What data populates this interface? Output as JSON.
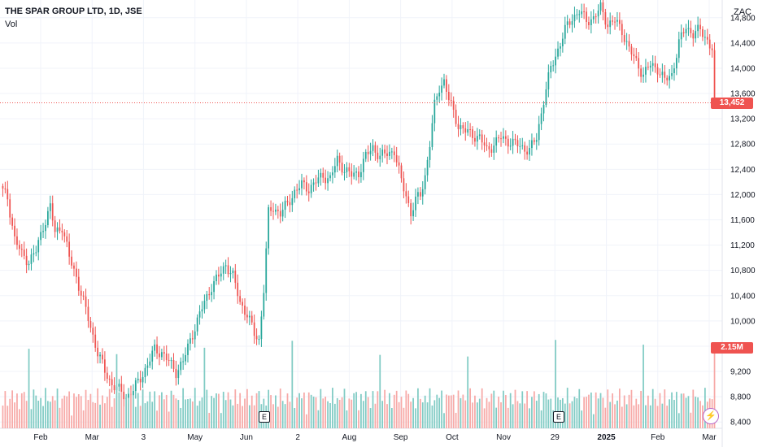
{
  "header": {
    "symbol": "THE SPAR GROUP LTD, 1D, JSE",
    "indicator": "Vol",
    "currency": "ZAC"
  },
  "last_price_label": "13,452",
  "last_volume_label": "2.15M",
  "earnings_marker": "E",
  "colors": {
    "up": "#26a69a",
    "down": "#ef5350",
    "up_vol": "#80cbc4",
    "down_vol": "#f7a9a7",
    "grid": "#f0f3fa",
    "axis_text": "#131722",
    "price_line": "#ef5350"
  },
  "chart_data": {
    "type": "candlestick",
    "title": "THE SPAR GROUP LTD, 1D, JSE",
    "yaxis": {
      "ticks": [
        8400,
        8800,
        9200,
        9600,
        10000,
        10400,
        10800,
        11200,
        11600,
        12000,
        12400,
        12800,
        13200,
        13600,
        14000,
        14400,
        14800
      ],
      "tick_labels": [
        "8,400",
        "8,800",
        "9,200",
        "9,600",
        "10,000",
        "10,400",
        "10,800",
        "11,200",
        "11,600",
        "12,000",
        "12,400",
        "12,800",
        "13,200",
        "13,600",
        "14,000",
        "14,400",
        "14,800"
      ],
      "range": [
        8300,
        15080
      ]
    },
    "xaxis": {
      "tick_labels": [
        "Feb",
        "Mar",
        "3",
        "May",
        "Jun",
        "2",
        "Aug",
        "Sep",
        "Oct",
        "Nov",
        "29",
        "2025",
        "Feb",
        "Mar"
      ],
      "bold_label": "2025"
    },
    "last_price": 13452,
    "last_volume": "2.15M",
    "price_path": [
      [
        0,
        12050
      ],
      [
        2,
        11950
      ],
      [
        5,
        11300
      ],
      [
        8,
        11050
      ],
      [
        11,
        10950
      ],
      [
        14,
        11100
      ],
      [
        17,
        11500
      ],
      [
        20,
        11800
      ],
      [
        22,
        11400
      ],
      [
        25,
        11500
      ],
      [
        28,
        11000
      ],
      [
        31,
        10700
      ],
      [
        34,
        10300
      ],
      [
        37,
        9900
      ],
      [
        40,
        9500
      ],
      [
        43,
        9200
      ],
      [
        46,
        9000
      ],
      [
        49,
        8900
      ],
      [
        52,
        8800
      ],
      [
        55,
        8900
      ],
      [
        58,
        9100
      ],
      [
        61,
        9300
      ],
      [
        64,
        9550
      ],
      [
        67,
        9500
      ],
      [
        70,
        9350
      ],
      [
        73,
        9200
      ],
      [
        76,
        9350
      ],
      [
        79,
        9700
      ],
      [
        82,
        10000
      ],
      [
        85,
        10300
      ],
      [
        88,
        10550
      ],
      [
        91,
        10700
      ],
      [
        94,
        10900
      ],
      [
        97,
        10700
      ],
      [
        100,
        10300
      ],
      [
        103,
        10100
      ],
      [
        106,
        9800
      ],
      [
        108,
        9700
      ],
      [
        110,
        10500
      ],
      [
        112,
        11700
      ],
      [
        114,
        11800
      ],
      [
        117,
        11700
      ],
      [
        120,
        11850
      ],
      [
        123,
        12050
      ],
      [
        126,
        12150
      ],
      [
        129,
        12100
      ],
      [
        132,
        12200
      ],
      [
        135,
        12300
      ],
      [
        138,
        12250
      ],
      [
        141,
        12550
      ],
      [
        144,
        12400
      ],
      [
        147,
        12300
      ],
      [
        150,
        12350
      ],
      [
        153,
        12600
      ],
      [
        156,
        12750
      ],
      [
        159,
        12600
      ],
      [
        162,
        12650
      ],
      [
        165,
        12700
      ],
      [
        168,
        12200
      ],
      [
        170,
        12000
      ],
      [
        172,
        11700
      ],
      [
        174,
        11900
      ],
      [
        176,
        12000
      ],
      [
        178,
        12300
      ],
      [
        180,
        12800
      ],
      [
        182,
        13400
      ],
      [
        184,
        13700
      ],
      [
        186,
        13800
      ],
      [
        188,
        13500
      ],
      [
        190,
        13300
      ],
      [
        192,
        13100
      ],
      [
        195,
        13000
      ],
      [
        198,
        12950
      ],
      [
        201,
        12900
      ],
      [
        204,
        12700
      ],
      [
        207,
        12800
      ],
      [
        210,
        12900
      ],
      [
        213,
        12850
      ],
      [
        216,
        12800
      ],
      [
        219,
        12750
      ],
      [
        222,
        12700
      ],
      [
        225,
        12900
      ],
      [
        228,
        13500
      ],
      [
        231,
        14000
      ],
      [
        234,
        14300
      ],
      [
        237,
        14600
      ],
      [
        240,
        14800
      ],
      [
        243,
        14900
      ],
      [
        246,
        14750
      ],
      [
        249,
        14800
      ],
      [
        252,
        14950
      ],
      [
        255,
        14700
      ],
      [
        258,
        14750
      ],
      [
        261,
        14600
      ],
      [
        264,
        14300
      ],
      [
        267,
        14100
      ],
      [
        270,
        13900
      ],
      [
        273,
        14050
      ],
      [
        276,
        14000
      ],
      [
        279,
        13800
      ],
      [
        282,
        13900
      ],
      [
        285,
        14400
      ],
      [
        288,
        14650
      ],
      [
        291,
        14550
      ],
      [
        294,
        14600
      ],
      [
        297,
        14450
      ],
      [
        299,
        14300
      ],
      [
        300,
        13452
      ]
    ]
  }
}
